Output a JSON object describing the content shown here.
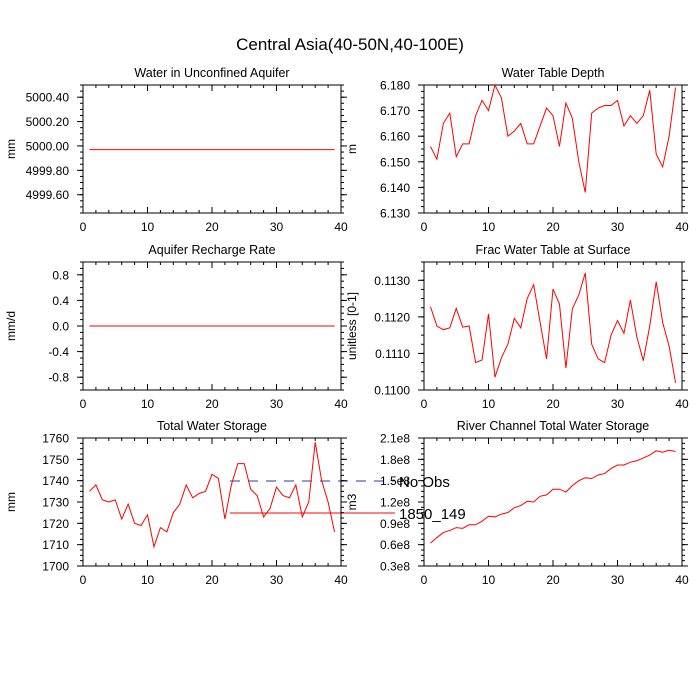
{
  "title": "Central Asia(40-50N,40-100E)",
  "colors": {
    "series": "#ff0000",
    "obs": "#3333aa",
    "axis": "#000000"
  },
  "legend": [
    {
      "label": "No Obs",
      "style": "dashed",
      "color": "#3333aa"
    },
    {
      "label": "1850_149",
      "style": "solid",
      "color": "#ff0000"
    }
  ],
  "chart_data": [
    {
      "type": "line",
      "title": "Water in Unconfined Aquifer",
      "ylabel": "mm",
      "xlim": [
        0,
        40
      ],
      "xticks": [
        0,
        10,
        20,
        30,
        40
      ],
      "ylim": [
        4999.45,
        5000.5
      ],
      "yticks": [
        4999.6,
        4999.8,
        5000.0,
        5000.2,
        5000.4
      ],
      "ytick_labels": [
        "4999.60",
        "4999.80",
        "5000.00",
        "5000.20",
        "5000.40"
      ],
      "x_start": 1,
      "values": [
        4999.97,
        4999.97,
        4999.97,
        4999.97,
        4999.97,
        4999.97,
        4999.97,
        4999.97,
        4999.97,
        4999.97,
        4999.97,
        4999.97,
        4999.97,
        4999.97,
        4999.97,
        4999.97,
        4999.97,
        4999.97,
        4999.97,
        4999.97,
        4999.97,
        4999.97,
        4999.97,
        4999.97,
        4999.97,
        4999.97,
        4999.97,
        4999.97,
        4999.97,
        4999.97,
        4999.97,
        4999.97,
        4999.97,
        4999.97,
        4999.97,
        4999.97,
        4999.97,
        4999.97,
        4999.97
      ]
    },
    {
      "type": "line",
      "title": "Water Table Depth",
      "ylabel": "m",
      "xlim": [
        0,
        40
      ],
      "xticks": [
        0,
        10,
        20,
        30,
        40
      ],
      "ylim": [
        6.13,
        6.18
      ],
      "yticks": [
        6.13,
        6.14,
        6.15,
        6.16,
        6.17,
        6.18
      ],
      "ytick_labels": [
        "6.130",
        "6.140",
        "6.150",
        "6.160",
        "6.170",
        "6.180"
      ],
      "x_start": 1,
      "values": [
        6.156,
        6.151,
        6.165,
        6.169,
        6.152,
        6.157,
        6.157,
        6.168,
        6.174,
        6.17,
        6.18,
        6.175,
        6.16,
        6.162,
        6.165,
        6.157,
        6.157,
        6.164,
        6.171,
        6.168,
        6.156,
        6.173,
        6.167,
        6.15,
        6.138,
        6.169,
        6.171,
        6.172,
        6.172,
        6.174,
        6.164,
        6.168,
        6.165,
        6.168,
        6.178,
        6.153,
        6.148,
        6.16,
        6.179
      ]
    },
    {
      "type": "line",
      "title": "Aquifer Recharge Rate",
      "ylabel": "mm/d",
      "xlim": [
        0,
        40
      ],
      "xticks": [
        0,
        10,
        20,
        30,
        40
      ],
      "ylim": [
        -1.0,
        1.0
      ],
      "yticks": [
        -0.8,
        -0.4,
        0.0,
        0.4,
        0.8
      ],
      "ytick_labels": [
        "-0.8",
        "-0.4",
        "0.0",
        "0.4",
        "0.8"
      ],
      "x_start": 1,
      "values": [
        0,
        0,
        0,
        0,
        0,
        0,
        0,
        0,
        0,
        0,
        0,
        0,
        0,
        0,
        0,
        0,
        0,
        0,
        0,
        0,
        0,
        0,
        0,
        0,
        0,
        0,
        0,
        0,
        0,
        0,
        0,
        0,
        0,
        0,
        0,
        0,
        0,
        0,
        0
      ]
    },
    {
      "type": "line",
      "title": "Frac Water Table at Surface",
      "ylabel": "unitless [0-1]",
      "xlim": [
        0,
        40
      ],
      "xticks": [
        0,
        10,
        20,
        30,
        40
      ],
      "ylim": [
        0.11,
        0.1135
      ],
      "yticks": [
        0.11,
        0.111,
        0.112,
        0.113
      ],
      "ytick_labels": [
        "0.1100",
        "0.1110",
        "0.1120",
        "0.1130"
      ],
      "x_start": 1,
      "values": [
        0.11228,
        0.11175,
        0.11165,
        0.1117,
        0.11223,
        0.11172,
        0.11175,
        0.11075,
        0.11082,
        0.11208,
        0.11035,
        0.11088,
        0.11125,
        0.11196,
        0.1117,
        0.1125,
        0.11288,
        0.11185,
        0.11085,
        0.11276,
        0.11235,
        0.1106,
        0.11222,
        0.1126,
        0.1132,
        0.11125,
        0.11085,
        0.11075,
        0.1115,
        0.1119,
        0.11155,
        0.11246,
        0.11145,
        0.1108,
        0.11175,
        0.11296,
        0.11185,
        0.1112,
        0.1102
      ]
    },
    {
      "type": "line",
      "title": "Total Water Storage",
      "ylabel": "mm",
      "xlim": [
        0,
        40
      ],
      "xticks": [
        0,
        10,
        20,
        30,
        40
      ],
      "ylim": [
        1700,
        1760
      ],
      "yticks": [
        1700,
        1710,
        1720,
        1730,
        1740,
        1750,
        1760
      ],
      "ytick_labels": [
        "1700",
        "1710",
        "1720",
        "1730",
        "1740",
        "1750",
        "1760"
      ],
      "x_start": 1,
      "values": [
        1735,
        1738,
        1731,
        1730,
        1731,
        1722,
        1729,
        1720,
        1719,
        1724,
        1709,
        1718,
        1716,
        1725,
        1729,
        1738,
        1732,
        1734,
        1735,
        1743,
        1741,
        1722,
        1738,
        1748,
        1748,
        1736,
        1733,
        1723,
        1727,
        1737,
        1733,
        1732,
        1738,
        1723,
        1730,
        1758,
        1740,
        1730,
        1716
      ]
    },
    {
      "type": "line",
      "title": "River Channel Total Water Storage",
      "ylabel": "m3",
      "xlim": [
        0,
        40
      ],
      "xticks": [
        0,
        10,
        20,
        30,
        40
      ],
      "ylim": [
        0.3,
        2.1
      ],
      "yticks": [
        0.3,
        0.6,
        0.9,
        1.2,
        1.5,
        1.8,
        2.1
      ],
      "ytick_labels": [
        "0.3e8",
        "0.6e8",
        "0.9e8",
        "1.2e8",
        "1.5e8",
        "1.8e8",
        "2.1e8"
      ],
      "x_start": 1,
      "values": [
        0.62,
        0.7,
        0.77,
        0.8,
        0.84,
        0.83,
        0.88,
        0.88,
        0.93,
        1.0,
        0.99,
        1.03,
        1.05,
        1.12,
        1.15,
        1.21,
        1.2,
        1.28,
        1.3,
        1.38,
        1.38,
        1.34,
        1.43,
        1.5,
        1.54,
        1.53,
        1.58,
        1.6,
        1.67,
        1.72,
        1.72,
        1.76,
        1.78,
        1.82,
        1.86,
        1.92,
        1.9,
        1.93,
        1.91
      ]
    }
  ]
}
